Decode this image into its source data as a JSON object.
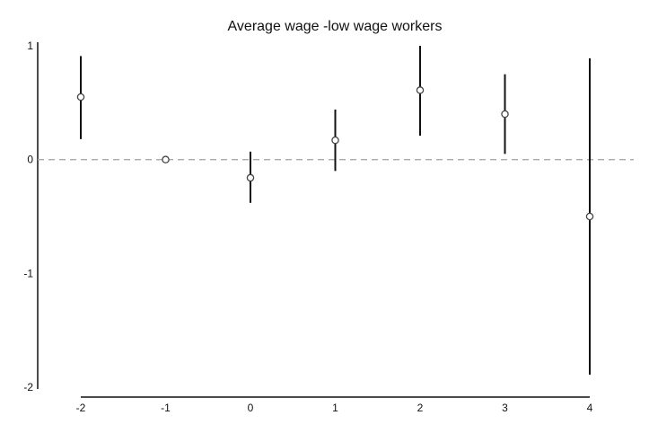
{
  "chart_data": {
    "type": "scatter",
    "title": "Average wage -low wage workers",
    "xlabel": "",
    "ylabel": "",
    "x": [
      -2,
      -1,
      0,
      1,
      2,
      3,
      4
    ],
    "series": [
      {
        "estimates": [
          0.55,
          0.0,
          -0.16,
          0.17,
          0.61,
          0.4,
          -0.5
        ],
        "ci_lower": [
          0.18,
          0.0,
          -0.38,
          -0.1,
          0.21,
          0.05,
          -1.89
        ],
        "ci_upper": [
          0.91,
          0.0,
          0.07,
          0.44,
          1.0,
          0.75,
          0.89
        ]
      }
    ],
    "xlim": [
      -2,
      4
    ],
    "ylim": [
      -2,
      1
    ],
    "xticks": [
      "-2",
      "-1",
      "0",
      "1",
      "2",
      "3",
      "4"
    ],
    "yticks": [
      "1",
      "0",
      "-1",
      "-2"
    ],
    "reference_line": {
      "y": 0,
      "style": "dashed",
      "color": "#aaaaaa"
    },
    "marker": "hollow-circle",
    "colors": {
      "error_bar": "#111111",
      "marker": "#444444",
      "axis": "#111111"
    },
    "grid": false,
    "legend": "none"
  }
}
